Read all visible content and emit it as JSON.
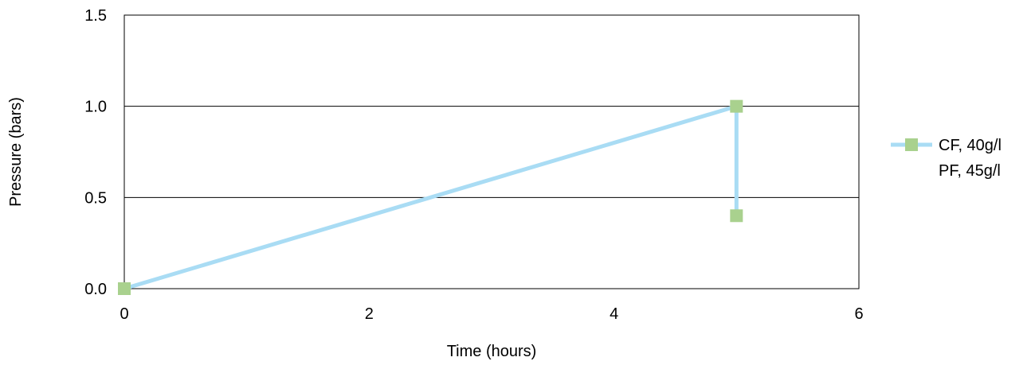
{
  "chart_data": {
    "type": "line",
    "title": "",
    "xlabel": "Time (hours)",
    "ylabel": "Pressure (bars)",
    "xlim": [
      0,
      6
    ],
    "ylim": [
      0,
      1.5
    ],
    "x_ticks": [
      "0",
      "2",
      "4",
      "6"
    ],
    "y_ticks": [
      "0.0",
      "0.5",
      "1.0",
      "1.5"
    ],
    "grid": "horizontal",
    "legend_position": "right",
    "series": [
      {
        "name": "CF, 40g/l",
        "name_line2": "PF, 45g/l",
        "line_color": "#a9dcf4",
        "marker_color": "#a9d18e",
        "marker": "square",
        "points": [
          {
            "x": 0,
            "y": 0.0
          },
          {
            "x": 5,
            "y": 1.0
          },
          {
            "x": 5,
            "y": 0.4
          }
        ]
      }
    ]
  }
}
